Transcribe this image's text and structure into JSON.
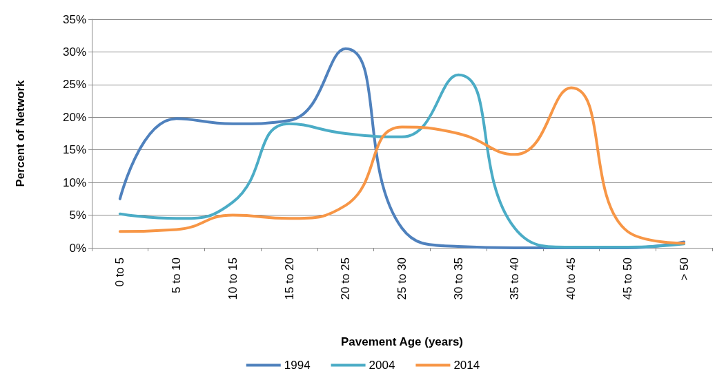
{
  "chart_data": {
    "type": "line",
    "xlabel": "Pavement Age (years)",
    "ylabel": "Percent of Network",
    "categories": [
      "0 to 5",
      "5 to 10",
      "10 to 15",
      "15 to 20",
      "20 to 25",
      "25 to 30",
      "30 to 35",
      "35 to 40",
      "40 to 45",
      "45 to 50",
      "> 50"
    ],
    "series": [
      {
        "name": "1994",
        "color": "#4f81bd",
        "values": [
          7.5,
          19.8,
          19,
          19.5,
          30.5,
          3,
          0.2,
          0,
          0,
          0,
          0.9
        ]
      },
      {
        "name": "2004",
        "color": "#4bacc6",
        "values": [
          5.2,
          4.5,
          7,
          19,
          17.5,
          17,
          26.5,
          3,
          0.1,
          0.1,
          0.6
        ]
      },
      {
        "name": "2014",
        "color": "#f79646",
        "values": [
          2.5,
          2.8,
          5,
          4.5,
          6.5,
          18.5,
          17.5,
          14.3,
          24.5,
          2.5,
          0.7
        ]
      }
    ],
    "ylim": [
      0,
      35
    ],
    "yticks": [
      {
        "value": 0,
        "label": "0%"
      },
      {
        "value": 5,
        "label": "5%"
      },
      {
        "value": 10,
        "label": "10%"
      },
      {
        "value": 15,
        "label": "15%"
      },
      {
        "value": 20,
        "label": "20%"
      },
      {
        "value": 25,
        "label": "25%"
      },
      {
        "value": 30,
        "label": "30%"
      },
      {
        "value": 35,
        "label": "35%"
      }
    ],
    "grid": "y",
    "legend": "bottom",
    "marker": "none",
    "line_style": "solid"
  }
}
